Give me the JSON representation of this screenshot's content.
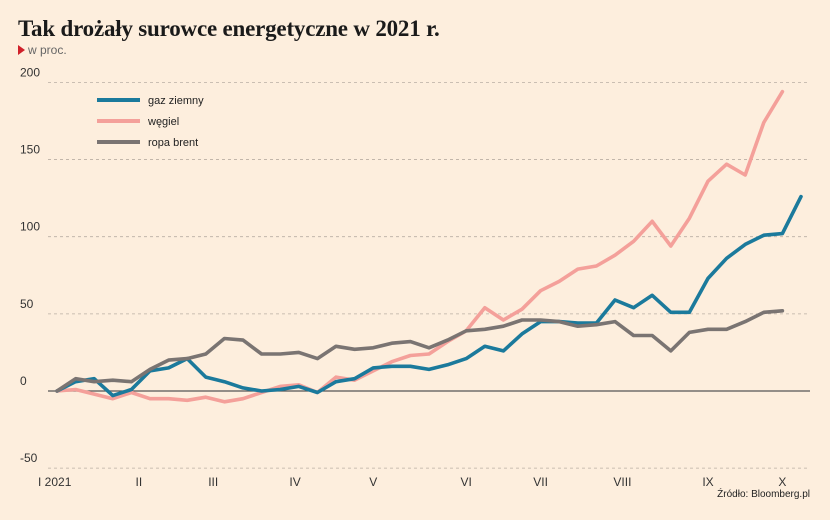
{
  "header": {
    "title": "Tak drożały surowce energetyczne w 2021 r.",
    "subtitle": "w proc.",
    "source": "Źródło: Bloomberg.pl"
  },
  "chart_data": {
    "type": "line",
    "title": "Tak drożały surowce energetyczne w 2021 r.",
    "subtitle": "w proc.",
    "xlabel": "",
    "ylabel": "",
    "ylim": [
      -50,
      200
    ],
    "yticks": [
      -50,
      0,
      50,
      100,
      150,
      200
    ],
    "xticks": [
      {
        "label": "I 2021",
        "week": 0
      },
      {
        "label": "II",
        "week": 4.4
      },
      {
        "label": "III",
        "week": 8.4
      },
      {
        "label": "IV",
        "week": 12.8
      },
      {
        "label": "V",
        "week": 17
      },
      {
        "label": "VI",
        "week": 22
      },
      {
        "label": "VII",
        "week": 26
      },
      {
        "label": "VIII",
        "week": 30.4
      },
      {
        "label": "IX",
        "week": 35
      },
      {
        "label": "X",
        "week": 39
      }
    ],
    "grid": "horizontal dashed",
    "legend": "top-left",
    "colors": {
      "gaz ziemny": "#1b7a9c",
      "węgiel": "#f4a09a",
      "ropa brent": "#7a7472"
    },
    "series": [
      {
        "name": "gaz ziemny",
        "values": [
          0,
          6,
          8,
          -3,
          1,
          13,
          15,
          21,
          9,
          6,
          2,
          0,
          1,
          3,
          -1,
          6,
          8,
          15,
          16,
          16,
          14,
          17,
          21,
          29,
          26,
          37,
          45,
          45,
          44,
          44,
          59,
          54,
          62,
          51,
          51,
          73,
          86,
          95,
          101,
          102,
          126
        ]
      },
      {
        "name": "węgiel",
        "values": [
          0,
          1,
          -2,
          -5,
          -1,
          -5,
          -5,
          -6,
          -4,
          -7,
          -5,
          -1,
          3,
          4,
          -1,
          9,
          7,
          13,
          19,
          23,
          24,
          32,
          39,
          54,
          46,
          53,
          65,
          71,
          79,
          81,
          88,
          97,
          110,
          94,
          112,
          136,
          147,
          140,
          174,
          194
        ]
      },
      {
        "name": "ropa brent",
        "values": [
          0,
          8,
          6,
          7,
          6,
          14,
          20,
          21,
          24,
          34,
          33,
          24,
          24,
          25,
          21,
          29,
          27,
          28,
          31,
          32,
          28,
          33,
          39,
          40,
          42,
          46,
          46,
          45,
          42,
          43,
          45,
          36,
          36,
          26,
          38,
          40,
          40,
          45,
          51,
          52
        ]
      }
    ]
  }
}
